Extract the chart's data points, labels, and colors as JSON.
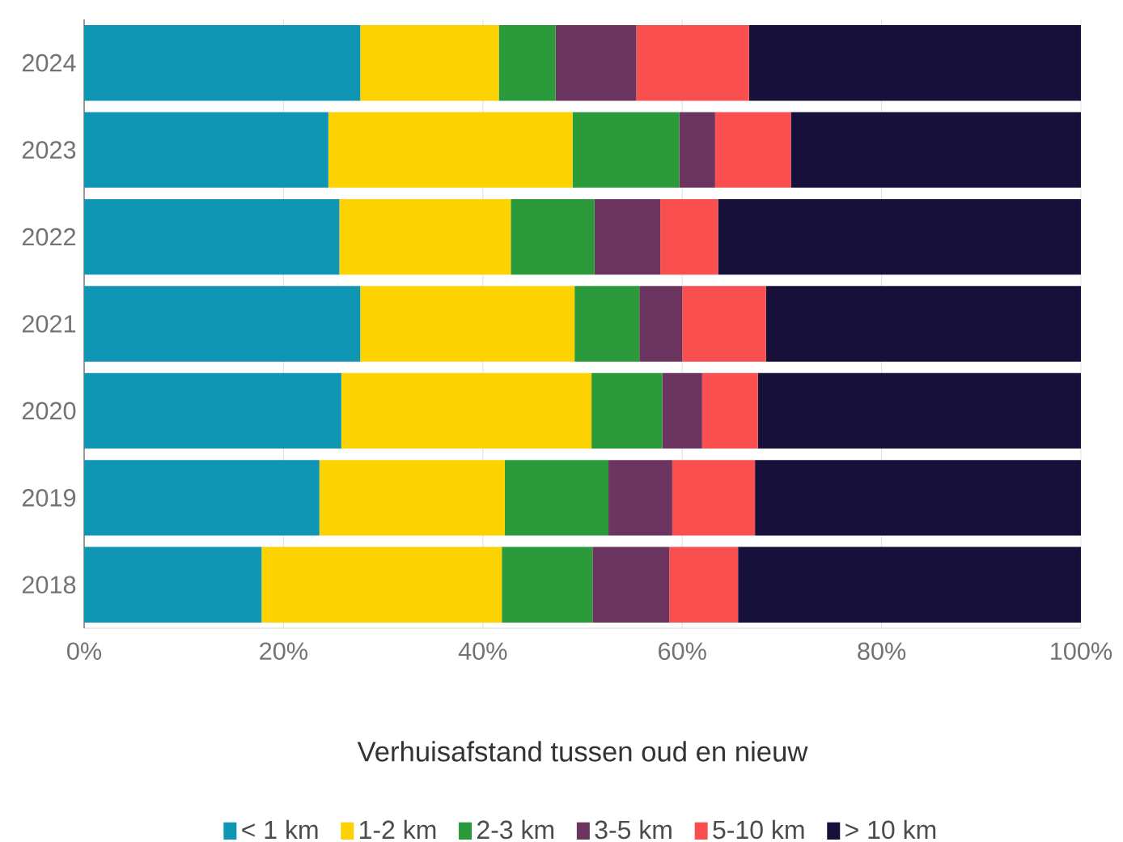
{
  "chart_data": {
    "type": "bar",
    "orientation": "horizontal",
    "stacked": true,
    "categories": [
      "2024",
      "2023",
      "2022",
      "2021",
      "2020",
      "2019",
      "2018"
    ],
    "series": [
      {
        "name": "< 1 km",
        "color": "#0f96b4",
        "values": [
          27.7,
          24.5,
          25.6,
          27.7,
          25.8,
          23.6,
          17.8
        ]
      },
      {
        "name": "1-2 km",
        "color": "#fcd200",
        "values": [
          13.9,
          24.5,
          17.2,
          21.5,
          25.1,
          18.6,
          24.1
        ]
      },
      {
        "name": "2-3 km",
        "color": "#2a9a3a",
        "values": [
          5.7,
          10.7,
          8.4,
          6.5,
          7.1,
          10.4,
          9.1
        ]
      },
      {
        "name": "3-5 km",
        "color": "#6b3560",
        "values": [
          8.1,
          3.6,
          6.6,
          4.3,
          4.0,
          6.4,
          7.7
        ]
      },
      {
        "name": "5-10 km",
        "color": "#f94f4f",
        "values": [
          11.3,
          7.6,
          5.8,
          8.4,
          5.6,
          8.3,
          6.9
        ]
      },
      {
        "name": "> 10 km",
        "color": "#16103a",
        "values": [
          33.3,
          29.1,
          36.4,
          31.6,
          32.4,
          32.7,
          34.4
        ]
      }
    ],
    "xlim": [
      0,
      100
    ],
    "xticks": [
      {
        "value": 0,
        "label": "0%"
      },
      {
        "value": 20,
        "label": "20%"
      },
      {
        "value": 40,
        "label": "40%"
      },
      {
        "value": 60,
        "label": "60%"
      },
      {
        "value": 80,
        "label": "80%"
      },
      {
        "value": 100,
        "label": "100%"
      }
    ],
    "grid": "x",
    "legend": "bottom",
    "legend_title": "Verhuisafstand tussen oud en nieuw"
  }
}
